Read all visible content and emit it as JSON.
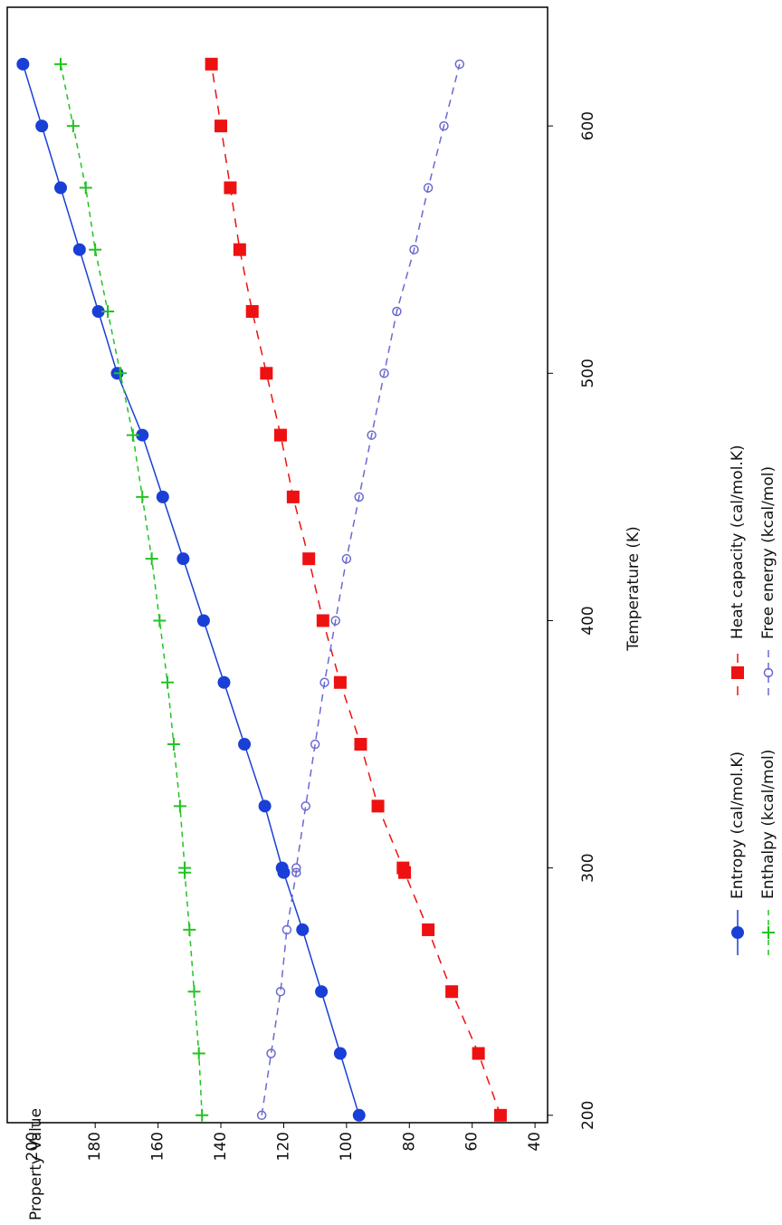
{
  "chart_data": {
    "type": "line",
    "y_label": "Property Value",
    "x_label": "Temperature (K)",
    "x": [
      200,
      225,
      250,
      275,
      298.15,
      300,
      325,
      350,
      375,
      400,
      425,
      450,
      475,
      500,
      525,
      550,
      575,
      600,
      625
    ],
    "series": [
      {
        "name": "Entropy (cal/mol.K)",
        "color": "#1a3fd6",
        "marker": "circle",
        "dash": "none",
        "values": [
          96,
          102,
          108,
          114,
          120,
          120.5,
          126,
          132.5,
          139,
          145.5,
          152,
          158.5,
          165,
          173,
          179,
          185,
          191,
          197,
          203
        ]
      },
      {
        "name": "Enthalpy (kcal/mol)",
        "color": "#22c322",
        "marker": "plus",
        "dash": "6,5",
        "values": [
          146,
          147,
          148.5,
          150,
          151.5,
          151.5,
          153,
          155,
          157,
          159.5,
          162,
          165,
          168,
          172,
          176,
          180,
          183,
          187,
          191
        ]
      },
      {
        "name": "Heat capacity (cal/mol.K)",
        "color": "#ee1111",
        "marker": "square",
        "dash": "10,8",
        "values": [
          51,
          58,
          66.5,
          74,
          81.5,
          82,
          90,
          95.5,
          102,
          107.5,
          112,
          117,
          121,
          125.5,
          130,
          134,
          137,
          140,
          143
        ]
      },
      {
        "name": "Free energy (kcal/mol)",
        "color": "#6a6ad0",
        "marker": "open-circle",
        "dash": "8,6",
        "values": [
          127,
          124,
          121,
          119,
          116,
          116,
          113,
          110,
          107,
          103.5,
          100,
          96,
          92,
          88,
          84,
          78.5,
          74,
          69,
          64
        ]
      }
    ],
    "xlim": [
      197,
      648
    ],
    "xticks": [
      200,
      300,
      400,
      500,
      600
    ],
    "ylim": [
      36,
      208
    ],
    "yticks": [
      40,
      60,
      80,
      100,
      120,
      140,
      160,
      180,
      200
    ]
  }
}
